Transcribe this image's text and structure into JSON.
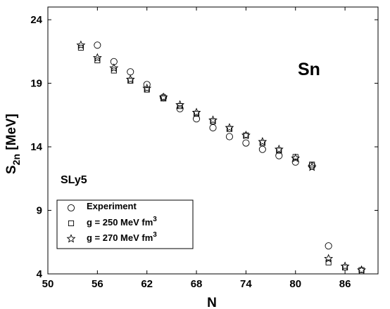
{
  "chart_data": {
    "type": "scatter",
    "title": "",
    "xlabel": "N",
    "ylabel": "S",
    "ylabel_sub": "2n",
    "ylabel_unit": " [MeV]",
    "xlim": [
      50,
      90
    ],
    "ylim": [
      4,
      25
    ],
    "xticks": [
      50,
      56,
      62,
      68,
      74,
      80,
      86
    ],
    "yticks": [
      4,
      9,
      14,
      19,
      24
    ],
    "grid": false,
    "legend_placement": "bottom-left",
    "annotations": {
      "element": "Sn",
      "force": "SLy5"
    },
    "series": [
      {
        "name": "Experiment",
        "marker": "circle",
        "x": [
          56,
          58,
          60,
          62,
          64,
          66,
          68,
          70,
          72,
          74,
          76,
          78,
          80,
          82,
          84
        ],
        "y": [
          22.0,
          20.7,
          19.9,
          18.9,
          17.9,
          17.0,
          16.2,
          15.5,
          14.8,
          14.3,
          13.8,
          13.3,
          12.8,
          12.5,
          6.2
        ]
      },
      {
        "name": "g = 250 MeV fm",
        "name_sup": "3",
        "marker": "square",
        "x": [
          54,
          56,
          58,
          60,
          62,
          64,
          66,
          68,
          70,
          72,
          74,
          76,
          78,
          80,
          82,
          84,
          86,
          88
        ],
        "y": [
          21.8,
          20.8,
          20.0,
          19.2,
          18.5,
          17.8,
          17.2,
          16.6,
          16.0,
          15.4,
          14.9,
          14.3,
          13.7,
          13.2,
          12.6,
          4.9,
          4.5,
          4.3
        ]
      },
      {
        "name": "g = 270 MeV fm",
        "name_sup": "3",
        "marker": "star",
        "x": [
          54,
          56,
          58,
          60,
          62,
          64,
          66,
          68,
          70,
          72,
          74,
          76,
          78,
          80,
          82,
          84,
          86,
          88
        ],
        "y": [
          22.0,
          21.0,
          20.2,
          19.3,
          18.6,
          17.9,
          17.3,
          16.7,
          16.1,
          15.5,
          14.9,
          14.4,
          13.8,
          13.1,
          12.4,
          5.2,
          4.6,
          4.3
        ]
      }
    ]
  }
}
